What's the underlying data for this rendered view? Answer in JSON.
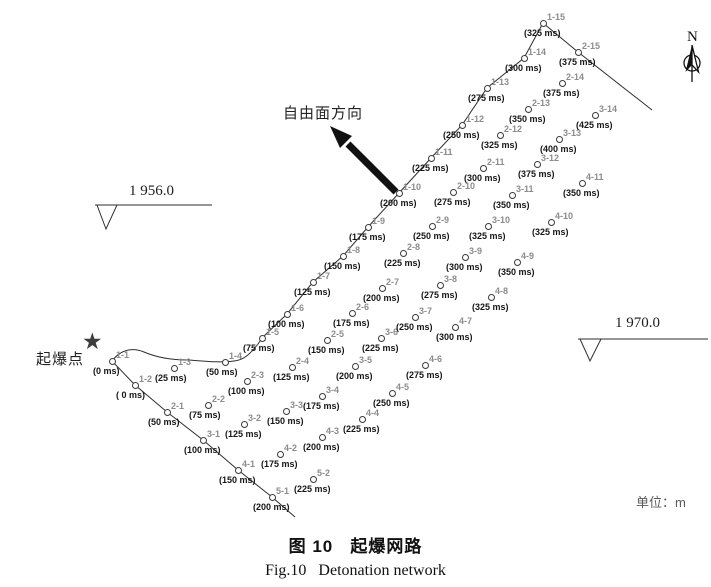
{
  "title": {
    "cn": "图 10   起爆网路",
    "en": "Fig.10   Detonation network"
  },
  "labels": {
    "north": "N",
    "free_face": "自由面方向",
    "initiation": "起爆点",
    "unit": "单位：m"
  },
  "elevations": {
    "left": "1 956.0",
    "right": "1 970.0"
  },
  "chart_data": {
    "type": "scatter",
    "title": "起爆网路 (Detonation network)",
    "unit": "m",
    "point_format": [
      "hole_id",
      "delay_label",
      "x_px",
      "y_px"
    ],
    "holes": [
      [
        "1-1",
        "(0 ms)",
        112,
        361
      ],
      [
        "1-2",
        "( 0 ms)",
        135,
        385
      ],
      [
        "1-3",
        "(25 ms)",
        174,
        368
      ],
      [
        "1-4",
        "(50 ms)",
        225,
        362
      ],
      [
        "1-5",
        "(75 ms)",
        262,
        338
      ],
      [
        "1-6",
        "(100 ms)",
        287,
        314
      ],
      [
        "1-7",
        "(125 ms)",
        313,
        282
      ],
      [
        "1-8",
        "(150 ms)",
        343,
        256
      ],
      [
        "1-9",
        "(175 ms)",
        368,
        227
      ],
      [
        "1-10",
        "(200 ms)",
        399,
        193
      ],
      [
        "1-11",
        "(225 ms)",
        431,
        158
      ],
      [
        "1-12",
        "(250 ms)",
        462,
        125
      ],
      [
        "1-13",
        "(275 ms)",
        487,
        88
      ],
      [
        "1-14",
        "(300 ms)",
        524,
        58
      ],
      [
        "1-15",
        "(325 ms)",
        543,
        23
      ],
      [
        "2-1",
        "(50 ms)",
        167,
        412
      ],
      [
        "2-2",
        "(75 ms)",
        208,
        405
      ],
      [
        "2-3",
        "(100 ms)",
        247,
        381
      ],
      [
        "2-4",
        "(125 ms)",
        292,
        367
      ],
      [
        "2-5",
        "(150 ms)",
        327,
        340
      ],
      [
        "2-6",
        "(175 ms)",
        352,
        313
      ],
      [
        "2-7",
        "(200 ms)",
        382,
        288
      ],
      [
        "2-8",
        "(225 ms)",
        403,
        253
      ],
      [
        "2-9",
        "(250 ms)",
        432,
        226
      ],
      [
        "2-10",
        "(275 ms)",
        453,
        192
      ],
      [
        "2-11",
        "(300 ms)",
        483,
        168
      ],
      [
        "2-12",
        "(325 ms)",
        500,
        135
      ],
      [
        "2-13",
        "(350 ms)",
        528,
        109
      ],
      [
        "2-14",
        "(375 ms)",
        562,
        83
      ],
      [
        "2-15",
        "(375 ms)",
        578,
        52
      ],
      [
        "3-1",
        "(100 ms)",
        203,
        440
      ],
      [
        "3-2",
        "(125 ms)",
        244,
        424
      ],
      [
        "3-3",
        "(150 ms)",
        286,
        411
      ],
      [
        "3-4",
        "(175 ms)",
        322,
        396
      ],
      [
        "3-5",
        "(200 ms)",
        355,
        366
      ],
      [
        "3-6",
        "(225 ms)",
        381,
        338
      ],
      [
        "3-7",
        "(250 ms)",
        415,
        317
      ],
      [
        "3-8",
        "(275 ms)",
        440,
        285
      ],
      [
        "3-9",
        "(300 ms)",
        465,
        257
      ],
      [
        "3-10",
        "(325 ms)",
        488,
        226
      ],
      [
        "3-11",
        "(350 ms)",
        512,
        195
      ],
      [
        "3-12",
        "(375 ms)",
        537,
        164
      ],
      [
        "3-13",
        "(400 ms)",
        559,
        139
      ],
      [
        "3-14",
        "(425 ms)",
        595,
        115
      ],
      [
        "4-1",
        "(150 ms)",
        238,
        470
      ],
      [
        "4-2",
        "(175 ms)",
        280,
        454
      ],
      [
        "4-3",
        "(200 ms)",
        322,
        437
      ],
      [
        "4-4",
        "(225 ms)",
        362,
        419
      ],
      [
        "4-5",
        "(250 ms)",
        392,
        393
      ],
      [
        "4-6",
        "(275 ms)",
        425,
        365
      ],
      [
        "4-7",
        "(300 ms)",
        455,
        327
      ],
      [
        "4-8",
        "(325 ms)",
        491,
        297
      ],
      [
        "4-9",
        "(350 ms)",
        517,
        262
      ],
      [
        "4-10",
        "(325 ms)",
        551,
        222
      ],
      [
        "4-11",
        "(350 ms)",
        582,
        183
      ],
      [
        "5-1",
        "(200 ms)",
        272,
        497
      ],
      [
        "5-2",
        "(225 ms)",
        313,
        479
      ]
    ]
  }
}
